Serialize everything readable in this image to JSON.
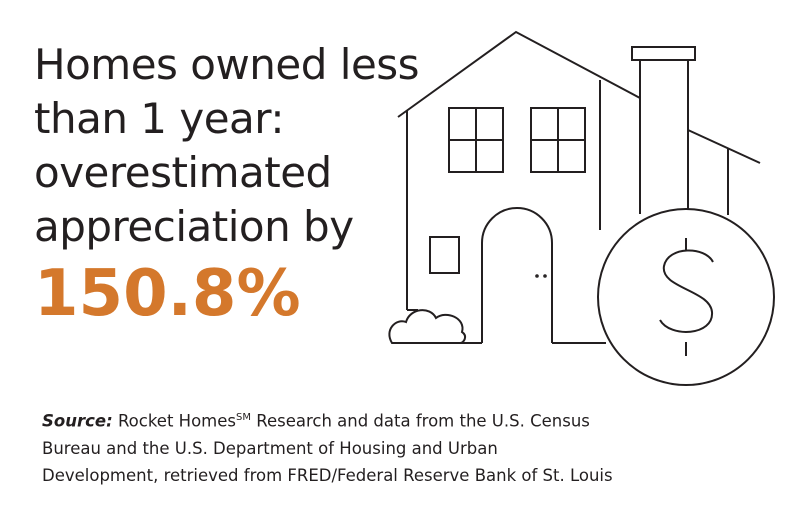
{
  "headline": {
    "lines": [
      "Homes owned less",
      "than 1 year:",
      "overestimated",
      "appreciation by"
    ],
    "stat": "150.8%"
  },
  "source": {
    "label": "Source:",
    "brand": "Rocket Homes",
    "mark": "SM",
    "lines": [
      "Research and data from the U.S. Census",
      "Bureau and the U.S. Department of Housing and Urban",
      "Development, retrieved from FRED/Federal Reserve Bank of St. Louis"
    ]
  }
}
